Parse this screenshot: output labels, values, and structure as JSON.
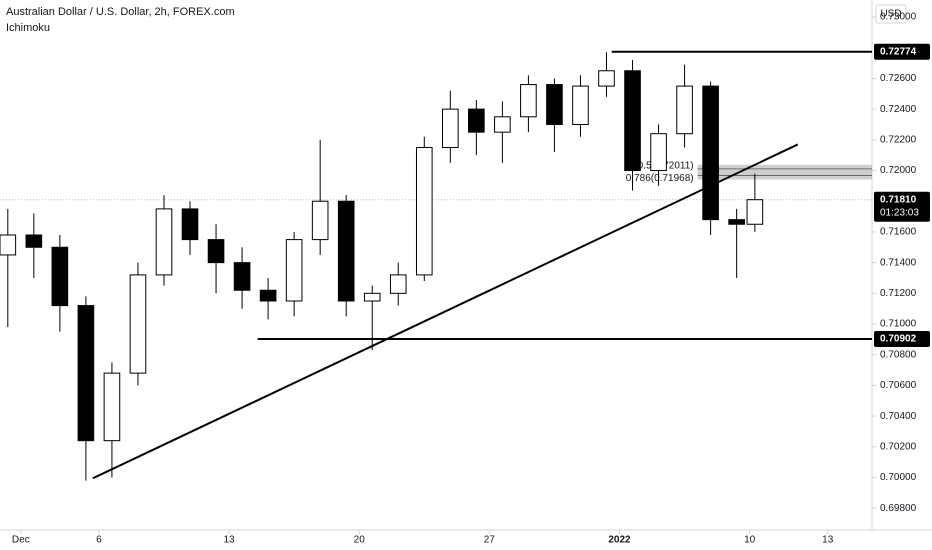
{
  "chart_data": {
    "type": "candlestick",
    "title": "Australian Dollar / U.S. Dollar, 2h, FOREX.com",
    "indicator": "Ichimoku",
    "currency": "USD",
    "x": [
      -0.5,
      0.5,
      1.5,
      2.5,
      3.5,
      4.5,
      5.5,
      6.5,
      7.5,
      8.5,
      9.5,
      10.5,
      11.5,
      12.5,
      13.5,
      14.5,
      15.5,
      16.5,
      17.5,
      18.5,
      19.5,
      20.5,
      21.5,
      22.5,
      23.5,
      24.5,
      25.5,
      26.5,
      27.5,
      28.2
    ],
    "open": [
      0.7145,
      0.7158,
      0.715,
      0.7112,
      0.7024,
      0.7068,
      0.7132,
      0.7175,
      0.7155,
      0.714,
      0.7122,
      0.7115,
      0.7155,
      0.718,
      0.7115,
      0.712,
      0.7132,
      0.7215,
      0.724,
      0.7225,
      0.7235,
      0.7256,
      0.723,
      0.7255,
      0.7265,
      0.72,
      0.7224,
      0.7255,
      0.7168,
      0.7165
    ],
    "high": [
      0.7175,
      0.7172,
      0.7158,
      0.7118,
      0.7075,
      0.714,
      0.7184,
      0.718,
      0.7165,
      0.715,
      0.713,
      0.716,
      0.722,
      0.7184,
      0.7125,
      0.714,
      0.7222,
      0.7252,
      0.7246,
      0.7245,
      0.7262,
      0.726,
      0.7262,
      0.7277,
      0.7272,
      0.723,
      0.7269,
      0.7258,
      0.7175,
      0.7198
    ],
    "low": [
      0.7098,
      0.713,
      0.7095,
      0.6998,
      0.7,
      0.706,
      0.7125,
      0.7145,
      0.712,
      0.711,
      0.7103,
      0.7105,
      0.7145,
      0.7105,
      0.7083,
      0.7112,
      0.7128,
      0.7205,
      0.721,
      0.7205,
      0.7225,
      0.7212,
      0.7222,
      0.7248,
      0.7187,
      0.719,
      0.7215,
      0.7158,
      0.713,
      0.716
    ],
    "close": [
      0.7158,
      0.715,
      0.7112,
      0.7024,
      0.7068,
      0.7132,
      0.7175,
      0.7155,
      0.714,
      0.7122,
      0.7115,
      0.7155,
      0.718,
      0.7115,
      0.712,
      0.7132,
      0.7215,
      0.724,
      0.7225,
      0.7235,
      0.7256,
      0.723,
      0.7255,
      0.7265,
      0.72,
      0.7224,
      0.7255,
      0.7168,
      0.7165,
      0.7181
    ],
    "xlim": [
      -0.8,
      32.7
    ],
    "ylim": [
      0.69658,
      0.73111
    ],
    "xticks": [
      {
        "value": 0,
        "label": "Dec"
      },
      {
        "value": 3,
        "label": "6"
      },
      {
        "value": 8,
        "label": "13"
      },
      {
        "value": 13,
        "label": "20"
      },
      {
        "value": 18,
        "label": "27"
      },
      {
        "value": 23,
        "label": "2022"
      },
      {
        "value": 28,
        "label": "10"
      },
      {
        "value": 31,
        "label": "13"
      }
    ],
    "yticks": [
      {
        "value": 0.73,
        "label": "0.73000"
      },
      {
        "value": 0.726,
        "label": "0.72600"
      },
      {
        "value": 0.724,
        "label": "0.72400"
      },
      {
        "value": 0.722,
        "label": "0.72200"
      },
      {
        "value": 0.72,
        "label": "0.72000"
      },
      {
        "value": 0.716,
        "label": "0.71600"
      },
      {
        "value": 0.714,
        "label": "0.71400"
      },
      {
        "value": 0.712,
        "label": "0.71200"
      },
      {
        "value": 0.71,
        "label": "0.71000"
      },
      {
        "value": 0.708,
        "label": "0.70800"
      },
      {
        "value": 0.706,
        "label": "0.70600"
      },
      {
        "value": 0.704,
        "label": "0.70400"
      },
      {
        "value": 0.702,
        "label": "0.70200"
      },
      {
        "value": 0.7,
        "label": "0.70000"
      },
      {
        "value": 0.698,
        "label": "0.69800"
      }
    ],
    "last_price": {
      "value": 0.7181,
      "label": "0.71810",
      "countdown": "01:23:03"
    },
    "levels": [
      {
        "value": 0.72774,
        "label": "0.72774",
        "from_x": 22.7
      },
      {
        "value": 0.70902,
        "label": "0.70902",
        "from_x": 9.1
      }
    ],
    "trendline": {
      "x": [
        2.77,
        29.85
      ],
      "y": [
        0.69995,
        0.7217
      ]
    },
    "fib": {
      "from_x": 26,
      "levels": [
        {
          "value": 0.72011,
          "label": "0.5(0.72011)"
        },
        {
          "value": 0.71968,
          "label": "0.786(0.71968)"
        }
      ]
    }
  }
}
